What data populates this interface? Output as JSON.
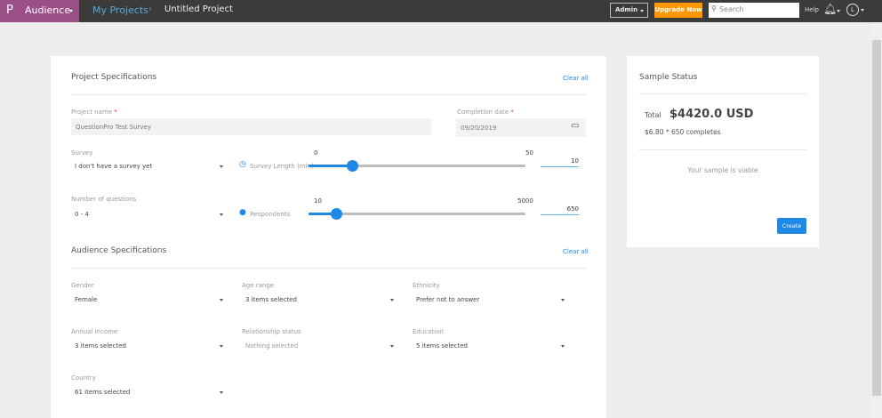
{
  "header": {
    "brand_letter": "P",
    "product": "Audience",
    "breadcrumb": [
      "My Projects",
      "Untitled Project"
    ],
    "admin": "Admin",
    "upgrade": "Upgrade Now",
    "search_placeholder": "Search",
    "help": "Help",
    "user_initial": "L"
  },
  "project": {
    "title": "Project Specifications",
    "clear_all": "Clear all",
    "name_label": "Project name",
    "name_value": "QuestionPro Test Survey",
    "date_label": "Completion date",
    "date_value": "09/20/2019",
    "survey_label": "Survey",
    "survey_value": "I don't have a survey yet",
    "length_label": "Survey Length (min)",
    "length_min": "0",
    "length_max": "50",
    "length_value": "10",
    "length_fraction": 0.2,
    "questions_label": "Number of questions",
    "questions_value": "0 - 4",
    "respondents_label": "Respondents",
    "resp_min": "10",
    "resp_max": "5000",
    "resp_value": "650",
    "resp_fraction": 0.128
  },
  "audience": {
    "title": "Audience Specifications",
    "clear_all": "Clear all",
    "fields": [
      {
        "label": "Gender",
        "value": "Female"
      },
      {
        "label": "Age range",
        "value": "3 items selected"
      },
      {
        "label": "Ethnicity",
        "value": "Prefer not to answer"
      },
      {
        "label": "Annual income",
        "value": "3 items selected"
      },
      {
        "label": "Relationship status",
        "value": "Nothing selected"
      },
      {
        "label": "Education",
        "value": "5 items selected"
      },
      {
        "label": "Country",
        "value": "61 items selected"
      }
    ]
  },
  "sample": {
    "title": "Sample Status",
    "total_label": "Total",
    "total_value": "$4420.0 USD",
    "breakdown": "$6.80 * 650 completes",
    "status": "Your sample is viable",
    "create": "Create"
  },
  "colors": {
    "brand": "#9a4f87",
    "accent": "#1e88e5",
    "upgrade": "#ff9800"
  }
}
